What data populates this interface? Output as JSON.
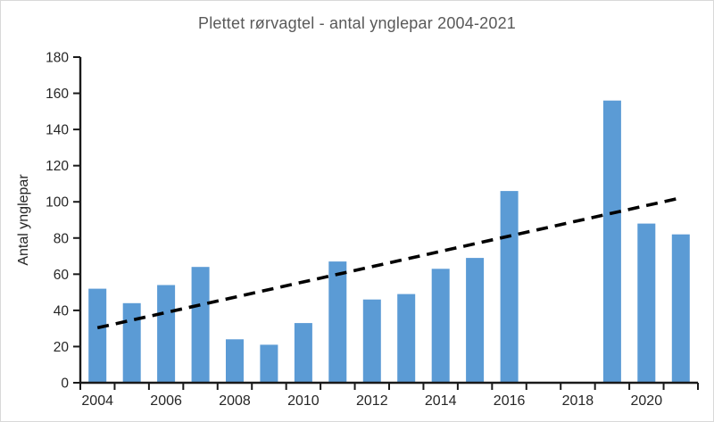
{
  "chart_data": {
    "type": "bar",
    "title": "Plettet rørvagtel - antal ynglepar 2004-2021",
    "title_color": "#595959",
    "xlabel": "",
    "ylabel": "Antal ynglepar",
    "categories": [
      2004,
      2005,
      2006,
      2007,
      2008,
      2009,
      2010,
      2011,
      2012,
      2013,
      2014,
      2015,
      2016,
      2017,
      2018,
      2019,
      2020,
      2021
    ],
    "values": [
      52,
      44,
      54,
      64,
      24,
      21,
      33,
      67,
      46,
      49,
      63,
      69,
      106,
      0,
      0,
      156,
      88,
      82
    ],
    "ylim": [
      0,
      180
    ],
    "ytick_step": 20,
    "ytick_labels": [
      "0",
      "20",
      "40",
      "60",
      "80",
      "100",
      "120",
      "140",
      "160",
      "180"
    ],
    "xtick_shown_years": [
      2004,
      2006,
      2008,
      2010,
      2012,
      2014,
      2016,
      2018,
      2020
    ],
    "bar_color": "#5b9bd5",
    "axis_color": "#1a1a1a",
    "tick_label_color": "#262626",
    "grid": false,
    "legend": false,
    "trendline": {
      "type": "linear",
      "style": "dashed",
      "color": "#000000",
      "x_start": 2004,
      "x_end": 2021,
      "value_start": 30.4,
      "value_end": 102.2
    }
  }
}
